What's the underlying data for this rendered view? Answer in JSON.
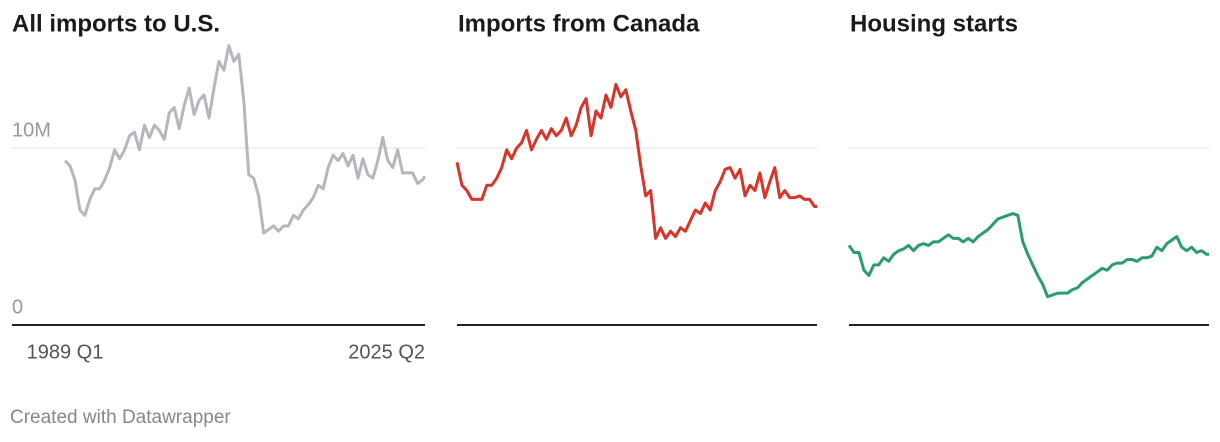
{
  "chart_data": [
    {
      "type": "line",
      "title": "All imports to U.S.",
      "x": [
        1989,
        1989.5,
        1990,
        1990.5,
        1991,
        1991.5,
        1992,
        1992.5,
        1993,
        1993.5,
        1994,
        1994.5,
        1995,
        1995.5,
        1996,
        1996.5,
        1997,
        1997.5,
        1998,
        1998.5,
        1999,
        1999.5,
        2000,
        2000.5,
        2001,
        2001.5,
        2002,
        2002.5,
        2003,
        2003.5,
        2004,
        2004.5,
        2005,
        2005.5,
        2006,
        2006.5,
        2007,
        2007.5,
        2008,
        2008.5,
        2009,
        2009.5,
        2010,
        2010.5,
        2011,
        2011.5,
        2012,
        2012.5,
        2013,
        2013.5,
        2014,
        2014.5,
        2015,
        2015.5,
        2016,
        2016.5,
        2017,
        2017.5,
        2018,
        2018.5,
        2019,
        2019.5,
        2020,
        2020.5,
        2021,
        2021.5,
        2022,
        2022.5,
        2023,
        2023.5,
        2024,
        2024.5,
        2025,
        2025.25
      ],
      "xlim": [
        1989,
        2025.25
      ],
      "xticks": [
        {
          "value": 1989,
          "label": "1989 Q1"
        },
        {
          "value": 2025.25,
          "label": "2025 Q2"
        }
      ],
      "ylim": [
        0,
        16
      ],
      "yticks": [
        0,
        {
          "value": 10,
          "label": "10M"
        }
      ],
      "tick_labels": true,
      "series": [
        {
          "color": "#b6b6be",
          "values": [
            9.3,
            9.0,
            8.2,
            6.5,
            6.2,
            7.1,
            7.7,
            7.7,
            8.2,
            8.9,
            9.9,
            9.4,
            9.9,
            10.7,
            10.9,
            9.9,
            11.3,
            10.6,
            11.3,
            11.0,
            10.5,
            12.0,
            12.3,
            11.1,
            12.4,
            13.4,
            11.9,
            12.7,
            13.0,
            11.7,
            13.4,
            14.9,
            14.4,
            15.8,
            14.9,
            15.3,
            12.7,
            8.5,
            8.3,
            7.3,
            5.2,
            5.4,
            5.6,
            5.3,
            5.6,
            5.6,
            6.2,
            6.0,
            6.5,
            6.8,
            7.2,
            7.9,
            7.7,
            8.9,
            9.6,
            9.3,
            9.7,
            9.0,
            9.6,
            8.3,
            9.4,
            8.5,
            8.3,
            9.3,
            10.6,
            9.3,
            8.9,
            9.9,
            8.6,
            8.6,
            8.6,
            8.0,
            8.2,
            8.4
          ]
        }
      ]
    },
    {
      "type": "line",
      "title": "Imports from Canada",
      "x": [
        1989,
        1989.5,
        1990,
        1990.5,
        1991,
        1991.5,
        1992,
        1992.5,
        1993,
        1993.5,
        1994,
        1994.5,
        1995,
        1995.5,
        1996,
        1996.5,
        1997,
        1997.5,
        1998,
        1998.5,
        1999,
        1999.5,
        2000,
        2000.5,
        2001,
        2001.5,
        2002,
        2002.5,
        2003,
        2003.5,
        2004,
        2004.5,
        2005,
        2005.5,
        2006,
        2006.5,
        2007,
        2007.5,
        2008,
        2008.5,
        2009,
        2009.5,
        2010,
        2010.5,
        2011,
        2011.5,
        2012,
        2012.5,
        2013,
        2013.5,
        2014,
        2014.5,
        2015,
        2015.5,
        2016,
        2016.5,
        2017,
        2017.5,
        2018,
        2018.5,
        2019,
        2019.5,
        2020,
        2020.5,
        2021,
        2021.5,
        2022,
        2022.5,
        2023,
        2023.5,
        2024,
        2024.5,
        2025,
        2025.25
      ],
      "xlim": [
        1989,
        2025.25
      ],
      "ylim": [
        0,
        16
      ],
      "yticks": [
        0,
        10
      ],
      "tick_labels": false,
      "series": [
        {
          "color": "#d7352a",
          "values": [
            9.2,
            7.9,
            7.6,
            7.1,
            7.1,
            7.1,
            7.9,
            7.9,
            8.3,
            8.9,
            9.9,
            9.4,
            10.0,
            10.3,
            11.0,
            9.9,
            10.5,
            11.0,
            10.5,
            11.1,
            10.7,
            11.0,
            11.7,
            10.7,
            11.3,
            12.3,
            12.8,
            10.7,
            12.1,
            11.7,
            13.0,
            12.3,
            13.6,
            12.9,
            13.3,
            12.1,
            11.0,
            9.0,
            7.3,
            7.6,
            4.9,
            5.5,
            4.9,
            5.3,
            5.0,
            5.5,
            5.3,
            5.9,
            6.5,
            6.3,
            6.9,
            6.5,
            7.6,
            8.1,
            8.8,
            8.9,
            8.3,
            8.8,
            7.3,
            7.9,
            7.6,
            8.6,
            7.2,
            8.1,
            8.9,
            7.2,
            7.6,
            7.2,
            7.2,
            7.3,
            7.1,
            7.1,
            6.7,
            6.7
          ]
        }
      ]
    },
    {
      "type": "line",
      "title": "Housing starts",
      "x": [
        1989,
        1989.5,
        1990,
        1990.5,
        1991,
        1991.5,
        1992,
        1992.5,
        1993,
        1993.5,
        1994,
        1994.5,
        1995,
        1995.5,
        1996,
        1996.5,
        1997,
        1997.5,
        1998,
        1998.5,
        1999,
        1999.5,
        2000,
        2000.5,
        2001,
        2001.5,
        2002,
        2002.5,
        2003,
        2003.5,
        2004,
        2004.5,
        2005,
        2005.5,
        2006,
        2006.5,
        2007,
        2007.5,
        2008,
        2008.5,
        2009,
        2009.5,
        2010,
        2010.5,
        2011,
        2011.5,
        2012,
        2012.5,
        2013,
        2013.5,
        2014,
        2014.5,
        2015,
        2015.5,
        2016,
        2016.5,
        2017,
        2017.5,
        2018,
        2018.5,
        2019,
        2019.5,
        2020,
        2020.5,
        2021,
        2021.5,
        2022,
        2022.5,
        2023,
        2023.5,
        2024,
        2024.5,
        2025,
        2025.25
      ],
      "xlim": [
        1989,
        2025.25
      ],
      "ylim": [
        0,
        16
      ],
      "yticks": [
        0,
        10
      ],
      "tick_labels": false,
      "series": [
        {
          "color": "#2a9d6e",
          "values": [
            4.5,
            4.1,
            4.1,
            3.1,
            2.8,
            3.4,
            3.4,
            3.8,
            3.6,
            4.0,
            4.2,
            4.3,
            4.5,
            4.2,
            4.5,
            4.6,
            4.5,
            4.7,
            4.7,
            4.9,
            5.1,
            4.9,
            4.9,
            4.7,
            4.9,
            4.7,
            5.0,
            5.2,
            5.4,
            5.7,
            6.0,
            6.1,
            6.2,
            6.3,
            6.2,
            4.7,
            4.0,
            3.4,
            2.8,
            2.3,
            1.6,
            1.7,
            1.8,
            1.8,
            1.8,
            2.0,
            2.1,
            2.4,
            2.6,
            2.8,
            3.0,
            3.2,
            3.1,
            3.4,
            3.5,
            3.5,
            3.7,
            3.7,
            3.6,
            3.8,
            3.8,
            3.9,
            4.4,
            4.2,
            4.6,
            4.8,
            5.0,
            4.4,
            4.2,
            4.4,
            4.1,
            4.2,
            4.0,
            4.0
          ]
        }
      ]
    }
  ],
  "footer": "Created with Datawrapper"
}
